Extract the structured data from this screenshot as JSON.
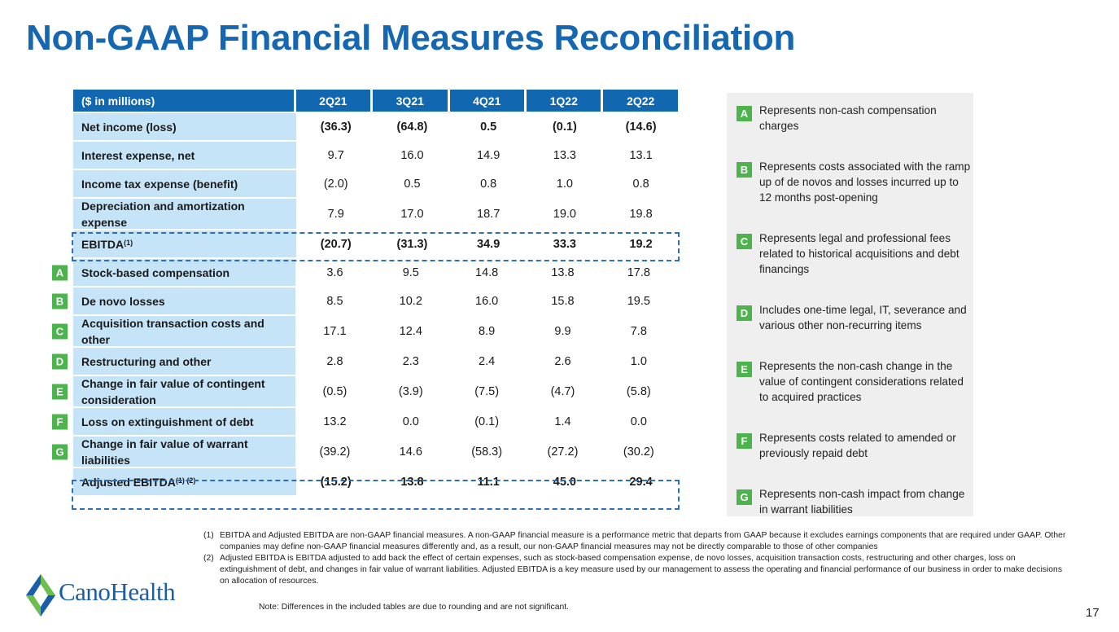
{
  "title": "Non-GAAP Financial Measures Reconciliation",
  "table": {
    "header_label": "($ in millions)",
    "periods": [
      "2Q21",
      "3Q21",
      "4Q21",
      "1Q22",
      "2Q22"
    ],
    "rows": [
      {
        "label": "Net income (loss)",
        "sup": "",
        "badge": "",
        "values": [
          "(36.3)",
          "(64.8)",
          "0.5",
          "(0.1)",
          "(14.6)"
        ]
      },
      {
        "label": "Interest expense, net",
        "sup": "",
        "badge": "",
        "values": [
          "9.7",
          "16.0",
          "14.9",
          "13.3",
          "13.1"
        ]
      },
      {
        "label": "Income tax expense (benefit)",
        "sup": "",
        "badge": "",
        "values": [
          "(2.0)",
          "0.5",
          "0.8",
          "1.0",
          "0.8"
        ]
      },
      {
        "label": "Depreciation and amortization expense",
        "sup": "",
        "badge": "",
        "values": [
          "7.9",
          "17.0",
          "18.7",
          "19.0",
          "19.8"
        ]
      },
      {
        "label": "EBITDA",
        "sup": "(1)",
        "badge": "",
        "values": [
          "(20.7)",
          "(31.3)",
          "34.9",
          "33.3",
          "19.2"
        ]
      },
      {
        "label": "Stock-based compensation",
        "sup": "",
        "badge": "A",
        "values": [
          "3.6",
          "9.5",
          "14.8",
          "13.8",
          "17.8"
        ]
      },
      {
        "label": "De novo losses",
        "sup": "",
        "badge": "B",
        "values": [
          "8.5",
          "10.2",
          "16.0",
          "15.8",
          "19.5"
        ]
      },
      {
        "label": "Acquisition transaction costs and other",
        "sup": "",
        "badge": "C",
        "values": [
          "17.1",
          "12.4",
          "8.9",
          "9.9",
          "7.8"
        ]
      },
      {
        "label": "Restructuring and other",
        "sup": "",
        "badge": "D",
        "values": [
          "2.8",
          "2.3",
          "2.4",
          "2.6",
          "1.0"
        ]
      },
      {
        "label": "Change in fair value of contingent consideration",
        "sup": "",
        "badge": "E",
        "values": [
          "(0.5)",
          "(3.9)",
          "(7.5)",
          "(4.7)",
          "(5.8)"
        ]
      },
      {
        "label": "Loss on extinguishment of debt",
        "sup": "",
        "badge": "F",
        "values": [
          "13.2",
          "0.0",
          "(0.1)",
          "1.4",
          "0.0"
        ]
      },
      {
        "label": "Change in fair value of warrant liabilities",
        "sup": "",
        "badge": "G",
        "values": [
          "(39.2)",
          "14.6",
          "(58.3)",
          "(27.2)",
          "(30.2)"
        ]
      },
      {
        "label": "Adjusted EBITDA",
        "sup": "(1) (2)",
        "badge": "",
        "values": [
          "(15.2)",
          "13.8",
          "11.1",
          "45.0",
          "29.4"
        ]
      }
    ]
  },
  "legend": [
    {
      "key": "A",
      "text": "Represents non-cash compensation charges"
    },
    {
      "key": "B",
      "text": "Represents costs associated with the ramp up of de novos and losses incurred up to 12 months post-opening"
    },
    {
      "key": "C",
      "text": "Represents legal and professional fees related to historical acquisitions and debt financings"
    },
    {
      "key": "D",
      "text": "Includes one-time legal, IT, severance and various other non-recurring items"
    },
    {
      "key": "E",
      "text": "Represents the non-cash change in the value of contingent considerations related to acquired practices"
    },
    {
      "key": "F",
      "text": "Represents costs related to amended or previously repaid debt"
    },
    {
      "key": "G",
      "text": "Represents non-cash impact from change in warrant liabilities"
    }
  ],
  "footnotes": [
    {
      "num": "(1)",
      "text": "EBITDA and Adjusted EBITDA are non-GAAP financial measures. A non-GAAP financial measure is a performance metric that departs from GAAP because it excludes earnings components that are required under GAAP. Other companies may define non-GAAP financial measures differently and, as a result, our non-GAAP financial measures may not be directly comparable to those of other companies"
    },
    {
      "num": "(2)",
      "text": "Adjusted EBITDA is EBITDA adjusted to add back the effect of certain expenses, such as stock-based compensation expense, de novo losses, acquisition transaction costs, restructuring and other charges, loss on extinguishment of debt, and changes in fair value of warrant liabilities. Adjusted EBITDA is a key measure used by our management to assess the operating and financial performance of our business in order to make decisions on allocation of resources."
    }
  ],
  "note": "Note: Differences in the included tables are due to rounding and are not significant.",
  "page_number": "17",
  "logo_text": "CanoHealth",
  "colors": {
    "title": "#1667b2",
    "header": "#1267b1",
    "label_bg": "#c6e4f7",
    "badge": "#4db34d",
    "legend_bg": "#efefef"
  }
}
